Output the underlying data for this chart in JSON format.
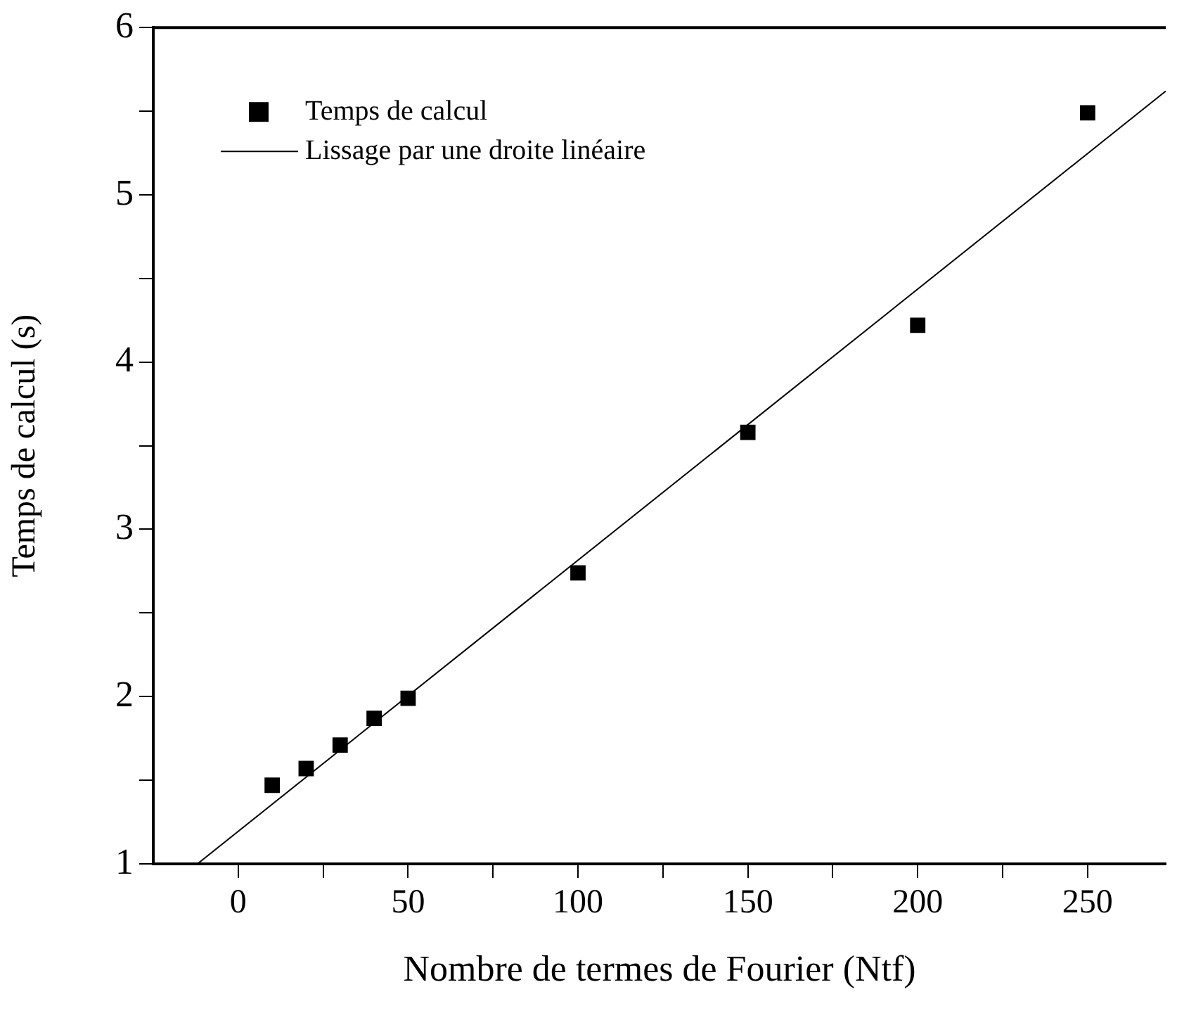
{
  "chart_data": {
    "type": "scatter",
    "xlabel": "Nombre de termes de Fourier (Ntf)",
    "ylabel": "Temps de calcul (s)",
    "xlim": [
      -25,
      273
    ],
    "ylim": [
      1,
      6
    ],
    "xticks": [
      0,
      {
        "value": 25,
        "label": null
      },
      50,
      {
        "value": 75,
        "label": null
      },
      100,
      {
        "value": 125,
        "label": null
      },
      150,
      {
        "value": 175,
        "label": null
      },
      200,
      {
        "value": 225,
        "label": null
      },
      250
    ],
    "yticks": [
      1,
      {
        "value": 1.5,
        "label": null
      },
      2,
      {
        "value": 2.5,
        "label": null
      },
      3,
      {
        "value": 3.5,
        "label": null
      },
      4,
      {
        "value": 4.5,
        "label": null
      },
      5,
      {
        "value": 5.5,
        "label": null
      },
      6
    ],
    "grid": false,
    "legend": "top left",
    "series": [
      {
        "name": "Temps de calcul",
        "color": "#000000",
        "marker": "square",
        "x": [
          10,
          20,
          30,
          40,
          50,
          100,
          150,
          200,
          250
        ],
        "values": [
          1.47,
          1.57,
          1.71,
          1.87,
          1.99,
          2.74,
          3.58,
          4.22,
          5.49
        ]
      },
      {
        "name": "Lissage par une droite linéaire",
        "type": "line",
        "color": "#000000",
        "marker": "none",
        "line_style": "solid",
        "x": [
          -12,
          273
        ],
        "values": [
          1,
          5.62
        ]
      }
    ]
  }
}
